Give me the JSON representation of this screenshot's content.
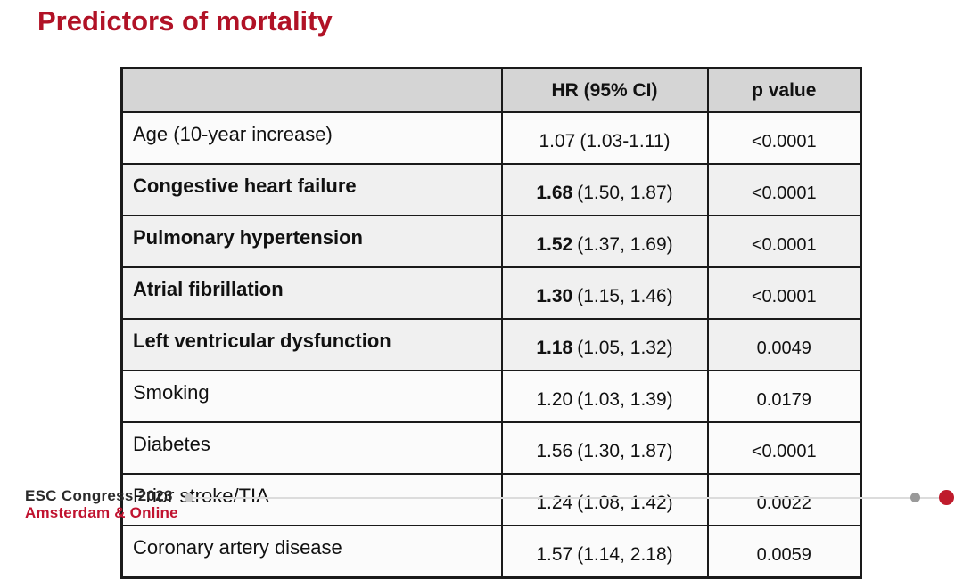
{
  "title": "Predictors of mortality",
  "table": {
    "headers": [
      "",
      "HR (95% CI)",
      "p value"
    ],
    "rows": [
      {
        "label": "Age (10-year increase)",
        "hr": "1.07",
        "ci": "(1.03-1.11)",
        "p": "<0.0001",
        "bold": false,
        "shaded": false
      },
      {
        "label": "Congestive heart failure",
        "hr": "1.68",
        "ci": "(1.50, 1.87)",
        "p": "<0.0001",
        "bold": true,
        "shaded": true
      },
      {
        "label": "Pulmonary hypertension",
        "hr": "1.52",
        "ci": "(1.37, 1.69)",
        "p": "<0.0001",
        "bold": true,
        "shaded": true
      },
      {
        "label": "Atrial fibrillation",
        "hr": "1.30",
        "ci": "(1.15, 1.46)",
        "p": "<0.0001",
        "bold": true,
        "shaded": true
      },
      {
        "label": "Left ventricular dysfunction",
        "hr": "1.18",
        "ci": "(1.05, 1.32)",
        "p": "0.0049",
        "bold": true,
        "shaded": true
      },
      {
        "label": "Smoking",
        "hr": "1.20",
        "ci": "(1.03, 1.39)",
        "p": "0.0179",
        "bold": false,
        "shaded": false
      },
      {
        "label": "Diabetes",
        "hr": "1.56",
        "ci": "(1.30, 1.87)",
        "p": "<0.0001",
        "bold": false,
        "shaded": false
      },
      {
        "label": "Prior stroke/TIA",
        "hr": "1.24",
        "ci": "(1.08, 1.42)",
        "p": "0.0022",
        "bold": false,
        "shaded": false
      },
      {
        "label": "Coronary artery disease",
        "hr": "1.57",
        "ci": "(1.14, 2.18)",
        "p": "0.0059",
        "bold": false,
        "shaded": false
      }
    ]
  },
  "footer": {
    "congress": "ESC Congress 2023",
    "location": "Amsterdam & Online"
  },
  "colors": {
    "title_red": "#b11226",
    "footer_red": "#c0122f",
    "accent_dot_red": "#bf1b2c"
  }
}
